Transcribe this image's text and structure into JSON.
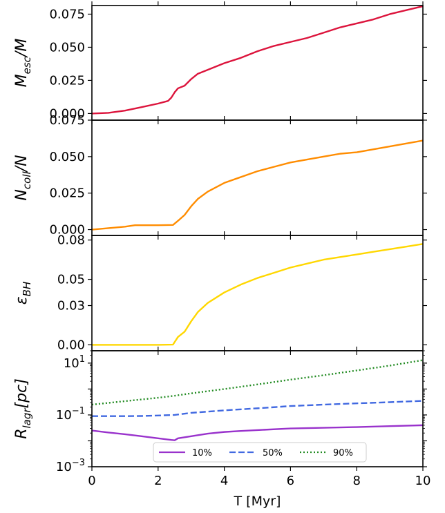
{
  "chart_data": [
    {
      "type": "line",
      "ylabel": {
        "main": "M",
        "sub": "esc",
        "suffix": "/M"
      },
      "ylim": [
        -0.005,
        0.0815
      ],
      "yticks": [
        0.0,
        0.025,
        0.05,
        0.075
      ],
      "ytick_labels": [
        "0.000",
        "0.025",
        "0.050",
        "0.075"
      ],
      "yscale": "linear",
      "series": [
        {
          "color": "#dc143c",
          "dash": "solid",
          "points": [
            [
              0,
              0.0
            ],
            [
              0.5,
              0.0005
            ],
            [
              1.0,
              0.0022
            ],
            [
              1.5,
              0.0048
            ],
            [
              2.0,
              0.0075
            ],
            [
              2.3,
              0.0095
            ],
            [
              2.4,
              0.012
            ],
            [
              2.5,
              0.016
            ],
            [
              2.6,
              0.019
            ],
            [
              2.8,
              0.021
            ],
            [
              3.0,
              0.026
            ],
            [
              3.2,
              0.03
            ],
            [
              3.5,
              0.033
            ],
            [
              4.0,
              0.038
            ],
            [
              4.5,
              0.042
            ],
            [
              5.0,
              0.047
            ],
            [
              5.5,
              0.051
            ],
            [
              6.0,
              0.054
            ],
            [
              6.5,
              0.057
            ],
            [
              7.0,
              0.061
            ],
            [
              7.5,
              0.065
            ],
            [
              8.0,
              0.068
            ],
            [
              8.5,
              0.071
            ],
            [
              9.0,
              0.075
            ],
            [
              9.5,
              0.078
            ],
            [
              10.0,
              0.081
            ]
          ]
        }
      ]
    },
    {
      "type": "line",
      "ylabel": {
        "main": "N",
        "sub": "coll",
        "suffix": "/N"
      },
      "ylim": [
        -0.004,
        0.075
      ],
      "yticks": [
        0.0,
        0.025,
        0.05,
        0.075
      ],
      "ytick_labels": [
        "0.000",
        "0.025",
        "0.050",
        "0.075"
      ],
      "yscale": "linear",
      "series": [
        {
          "color": "#ff8c00",
          "dash": "solid",
          "points": [
            [
              0,
              0.0
            ],
            [
              0.5,
              0.001
            ],
            [
              1.0,
              0.002
            ],
            [
              1.3,
              0.003
            ],
            [
              2.0,
              0.003
            ],
            [
              2.45,
              0.0032
            ],
            [
              2.6,
              0.006
            ],
            [
              2.8,
              0.01
            ],
            [
              3.0,
              0.016
            ],
            [
              3.2,
              0.021
            ],
            [
              3.5,
              0.026
            ],
            [
              4.0,
              0.032
            ],
            [
              4.5,
              0.036
            ],
            [
              5.0,
              0.04
            ],
            [
              5.5,
              0.043
            ],
            [
              6.0,
              0.046
            ],
            [
              6.5,
              0.048
            ],
            [
              7.0,
              0.05
            ],
            [
              7.5,
              0.052
            ],
            [
              8.0,
              0.053
            ],
            [
              8.5,
              0.055
            ],
            [
              9.0,
              0.057
            ],
            [
              9.5,
              0.059
            ],
            [
              10.0,
              0.061
            ]
          ]
        }
      ]
    },
    {
      "type": "line",
      "ylabel": {
        "main": "ε",
        "sub": "BH",
        "suffix": ""
      },
      "ylim": [
        -0.0045,
        0.0835
      ],
      "yticks": [
        0.0,
        0.03,
        0.05,
        0.08
      ],
      "ytick_labels": [
        "0.00",
        "0.03",
        "0.05",
        "0.08"
      ],
      "yscale": "linear",
      "series": [
        {
          "color": "#ffd700",
          "dash": "solid",
          "points": [
            [
              0,
              0.0
            ],
            [
              1.0,
              0.0
            ],
            [
              2.0,
              0.0
            ],
            [
              2.45,
              0.0002
            ],
            [
              2.6,
              0.006
            ],
            [
              2.8,
              0.01
            ],
            [
              3.0,
              0.018
            ],
            [
              3.2,
              0.025
            ],
            [
              3.5,
              0.032
            ],
            [
              4.0,
              0.04
            ],
            [
              4.5,
              0.046
            ],
            [
              5.0,
              0.051
            ],
            [
              5.5,
              0.055
            ],
            [
              6.0,
              0.059
            ],
            [
              6.5,
              0.062
            ],
            [
              7.0,
              0.065
            ],
            [
              7.5,
              0.067
            ],
            [
              8.0,
              0.069
            ],
            [
              8.5,
              0.071
            ],
            [
              9.0,
              0.073
            ],
            [
              9.5,
              0.075
            ],
            [
              10.0,
              0.077
            ]
          ]
        }
      ]
    },
    {
      "type": "line",
      "ylabel": {
        "main": "R",
        "sub": "lagr",
        "suffix": "[pc]"
      },
      "ylim": [
        0.001,
        30
      ],
      "yticks": [
        0.001,
        0.1,
        10
      ],
      "ytick_labels": [
        "10",
        "10",
        "10"
      ],
      "ytick_exps": [
        "−3",
        "−1",
        "1"
      ],
      "yscale": "log",
      "legend": {
        "placement": "lower-center",
        "entries": [
          "10%",
          "50%",
          "90%"
        ]
      },
      "series": [
        {
          "name": "10%",
          "color": "#9932cc",
          "dash": "solid",
          "points": [
            [
              0,
              0.025
            ],
            [
              0.5,
              0.021
            ],
            [
              1.0,
              0.018
            ],
            [
              1.5,
              0.015
            ],
            [
              2.0,
              0.0125
            ],
            [
              2.4,
              0.0108
            ],
            [
              2.5,
              0.0105
            ],
            [
              2.6,
              0.0125
            ],
            [
              3.0,
              0.015
            ],
            [
              3.5,
              0.019
            ],
            [
              4.0,
              0.022
            ],
            [
              4.5,
              0.024
            ],
            [
              5.0,
              0.026
            ],
            [
              6.0,
              0.03
            ],
            [
              7.0,
              0.032
            ],
            [
              8.0,
              0.034
            ],
            [
              9.0,
              0.037
            ],
            [
              10.0,
              0.04
            ]
          ]
        },
        {
          "name": "50%",
          "color": "#4169e1",
          "dash": "dashed",
          "points": [
            [
              0,
              0.09
            ],
            [
              1.0,
              0.09
            ],
            [
              1.5,
              0.091
            ],
            [
              2.0,
              0.095
            ],
            [
              2.5,
              0.1
            ],
            [
              3.0,
              0.12
            ],
            [
              4.0,
              0.15
            ],
            [
              5.0,
              0.18
            ],
            [
              6.0,
              0.22
            ],
            [
              7.0,
              0.25
            ],
            [
              8.0,
              0.28
            ],
            [
              9.0,
              0.31
            ],
            [
              10.0,
              0.35
            ]
          ]
        },
        {
          "name": "90%",
          "color": "#228b22",
          "dash": "dotted",
          "points": [
            [
              0,
              0.25
            ],
            [
              1.0,
              0.34
            ],
            [
              2.0,
              0.46
            ],
            [
              2.5,
              0.55
            ],
            [
              3.0,
              0.68
            ],
            [
              4.0,
              1.0
            ],
            [
              5.0,
              1.5
            ],
            [
              6.0,
              2.3
            ],
            [
              7.0,
              3.4
            ],
            [
              8.0,
              5.2
            ],
            [
              9.0,
              8.0
            ],
            [
              10.0,
              13.0
            ]
          ]
        }
      ]
    }
  ],
  "x_axis": {
    "label": "T [Myr]",
    "xlim": [
      0,
      10
    ],
    "ticks": [
      0,
      2,
      4,
      6,
      8,
      10
    ],
    "tick_labels": [
      "0",
      "2",
      "4",
      "6",
      "8",
      "10"
    ]
  }
}
